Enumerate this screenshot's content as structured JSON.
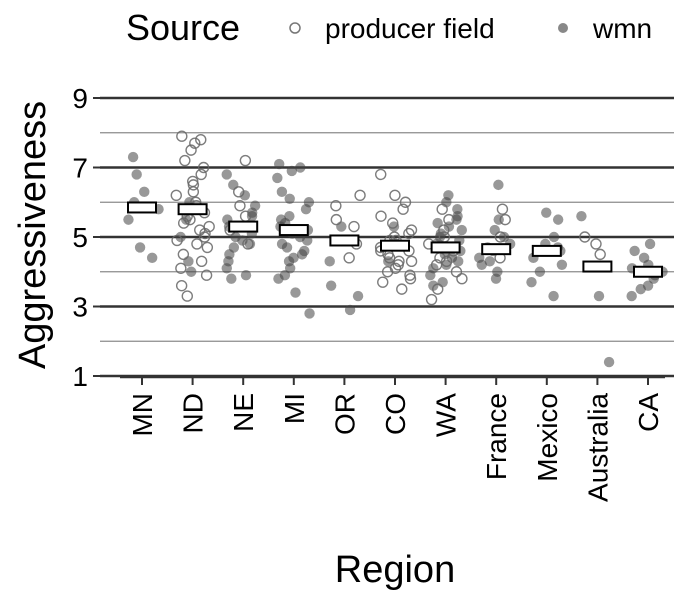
{
  "chart_data": {
    "type": "scatter",
    "subtype": "jittered strip plot with mean markers",
    "xlabel": "Region",
    "ylabel": "Aggressiveness",
    "ylim": [
      1,
      9.5
    ],
    "y_ticks": [
      1,
      3,
      5,
      7,
      9
    ],
    "y_minor_ticks": [
      2,
      4,
      6,
      8
    ],
    "grid": true,
    "categories": [
      "MN",
      "ND",
      "NE",
      "MI",
      "OR",
      "CO",
      "WA",
      "France",
      "Mexico",
      "Australia",
      "CA"
    ],
    "legend": {
      "title": "Source",
      "position": "top",
      "entries": [
        {
          "label": "producer field",
          "marker": "open-circle",
          "color": "#555555"
        },
        {
          "label": "wmn",
          "marker": "filled-circle",
          "color": "#555555"
        }
      ]
    },
    "means": [
      5.85,
      5.8,
      5.3,
      5.2,
      4.9,
      4.75,
      4.7,
      4.65,
      4.6,
      4.15,
      4.0
    ],
    "series": [
      {
        "name": "producer field",
        "points": [
          {
            "x": "ND",
            "y": 7.9
          },
          {
            "x": "ND",
            "y": 7.8
          },
          {
            "x": "ND",
            "y": 7.7
          },
          {
            "x": "ND",
            "y": 7.5
          },
          {
            "x": "ND",
            "y": 7.2
          },
          {
            "x": "ND",
            "y": 7.0
          },
          {
            "x": "ND",
            "y": 6.8
          },
          {
            "x": "ND",
            "y": 6.6
          },
          {
            "x": "ND",
            "y": 6.5
          },
          {
            "x": "ND",
            "y": 6.3
          },
          {
            "x": "ND",
            "y": 6.2
          },
          {
            "x": "ND",
            "y": 6.0
          },
          {
            "x": "ND",
            "y": 5.9
          },
          {
            "x": "ND",
            "y": 5.8
          },
          {
            "x": "ND",
            "y": 5.7
          },
          {
            "x": "ND",
            "y": 5.6
          },
          {
            "x": "ND",
            "y": 5.5
          },
          {
            "x": "ND",
            "y": 5.4
          },
          {
            "x": "ND",
            "y": 5.3
          },
          {
            "x": "ND",
            "y": 5.2
          },
          {
            "x": "ND",
            "y": 5.1
          },
          {
            "x": "ND",
            "y": 5.0
          },
          {
            "x": "ND",
            "y": 4.9
          },
          {
            "x": "ND",
            "y": 4.8
          },
          {
            "x": "ND",
            "y": 4.7
          },
          {
            "x": "ND",
            "y": 4.5
          },
          {
            "x": "ND",
            "y": 4.3
          },
          {
            "x": "ND",
            "y": 4.1
          },
          {
            "x": "ND",
            "y": 3.9
          },
          {
            "x": "ND",
            "y": 3.6
          },
          {
            "x": "ND",
            "y": 3.3
          },
          {
            "x": "NE",
            "y": 7.2
          },
          {
            "x": "NE",
            "y": 6.3
          },
          {
            "x": "NE",
            "y": 5.9
          },
          {
            "x": "NE",
            "y": 5.6
          },
          {
            "x": "NE",
            "y": 5.2
          },
          {
            "x": "NE",
            "y": 4.8
          },
          {
            "x": "OR",
            "y": 6.2
          },
          {
            "x": "OR",
            "y": 5.9
          },
          {
            "x": "OR",
            "y": 5.5
          },
          {
            "x": "OR",
            "y": 5.3
          },
          {
            "x": "OR",
            "y": 4.8
          },
          {
            "x": "OR",
            "y": 4.4
          },
          {
            "x": "CO",
            "y": 6.8
          },
          {
            "x": "CO",
            "y": 6.2
          },
          {
            "x": "CO",
            "y": 6.0
          },
          {
            "x": "CO",
            "y": 5.8
          },
          {
            "x": "CO",
            "y": 5.6
          },
          {
            "x": "CO",
            "y": 5.4
          },
          {
            "x": "CO",
            "y": 5.2
          },
          {
            "x": "CO",
            "y": 5.1
          },
          {
            "x": "CO",
            "y": 5.0
          },
          {
            "x": "CO",
            "y": 4.9
          },
          {
            "x": "CO",
            "y": 4.8
          },
          {
            "x": "CO",
            "y": 4.7
          },
          {
            "x": "CO",
            "y": 4.6
          },
          {
            "x": "CO",
            "y": 4.5
          },
          {
            "x": "CO",
            "y": 4.4
          },
          {
            "x": "CO",
            "y": 4.3
          },
          {
            "x": "CO",
            "y": 4.2
          },
          {
            "x": "CO",
            "y": 4.1
          },
          {
            "x": "CO",
            "y": 4.0
          },
          {
            "x": "CO",
            "y": 3.9
          },
          {
            "x": "CO",
            "y": 3.8
          },
          {
            "x": "CO",
            "y": 3.7
          },
          {
            "x": "CO",
            "y": 3.5
          },
          {
            "x": "CO",
            "y": 4.6
          },
          {
            "x": "CO",
            "y": 4.3
          },
          {
            "x": "CO",
            "y": 4.9
          },
          {
            "x": "WA",
            "y": 5.8
          },
          {
            "x": "WA",
            "y": 5.5
          },
          {
            "x": "WA",
            "y": 5.2
          },
          {
            "x": "WA",
            "y": 5.0
          },
          {
            "x": "WA",
            "y": 4.8
          },
          {
            "x": "WA",
            "y": 4.6
          },
          {
            "x": "WA",
            "y": 4.4
          },
          {
            "x": "WA",
            "y": 4.2
          },
          {
            "x": "WA",
            "y": 4.0
          },
          {
            "x": "WA",
            "y": 3.8
          },
          {
            "x": "WA",
            "y": 3.5
          },
          {
            "x": "WA",
            "y": 3.2
          },
          {
            "x": "WA",
            "y": 4.3
          },
          {
            "x": "WA",
            "y": 4.7
          },
          {
            "x": "France",
            "y": 5.8
          },
          {
            "x": "France",
            "y": 5.5
          },
          {
            "x": "France",
            "y": 5.0
          },
          {
            "x": "France",
            "y": 4.4
          },
          {
            "x": "Australia",
            "y": 5.0
          },
          {
            "x": "Australia",
            "y": 4.8
          },
          {
            "x": "Australia",
            "y": 4.5
          }
        ]
      },
      {
        "name": "wmn",
        "points": [
          {
            "x": "MN",
            "y": 7.3
          },
          {
            "x": "MN",
            "y": 6.8
          },
          {
            "x": "MN",
            "y": 6.3
          },
          {
            "x": "MN",
            "y": 6.0
          },
          {
            "x": "MN",
            "y": 5.8
          },
          {
            "x": "MN",
            "y": 5.5
          },
          {
            "x": "MN",
            "y": 4.7
          },
          {
            "x": "MN",
            "y": 4.4
          },
          {
            "x": "ND",
            "y": 6.0
          },
          {
            "x": "ND",
            "y": 5.5
          },
          {
            "x": "ND",
            "y": 5.0
          },
          {
            "x": "ND",
            "y": 4.3
          },
          {
            "x": "ND",
            "y": 4.0
          },
          {
            "x": "NE",
            "y": 6.8
          },
          {
            "x": "NE",
            "y": 6.5
          },
          {
            "x": "NE",
            "y": 6.2
          },
          {
            "x": "NE",
            "y": 5.9
          },
          {
            "x": "NE",
            "y": 5.7
          },
          {
            "x": "NE",
            "y": 5.5
          },
          {
            "x": "NE",
            "y": 5.3
          },
          {
            "x": "NE",
            "y": 5.1
          },
          {
            "x": "NE",
            "y": 4.9
          },
          {
            "x": "NE",
            "y": 4.7
          },
          {
            "x": "NE",
            "y": 4.5
          },
          {
            "x": "NE",
            "y": 4.3
          },
          {
            "x": "NE",
            "y": 4.1
          },
          {
            "x": "NE",
            "y": 3.9
          },
          {
            "x": "NE",
            "y": 3.8
          },
          {
            "x": "NE",
            "y": 5.6
          },
          {
            "x": "NE",
            "y": 4.8
          },
          {
            "x": "NE",
            "y": 5.0
          },
          {
            "x": "MI",
            "y": 7.1
          },
          {
            "x": "MI",
            "y": 7.0
          },
          {
            "x": "MI",
            "y": 6.9
          },
          {
            "x": "MI",
            "y": 6.7
          },
          {
            "x": "MI",
            "y": 6.3
          },
          {
            "x": "MI",
            "y": 6.1
          },
          {
            "x": "MI",
            "y": 5.8
          },
          {
            "x": "MI",
            "y": 5.6
          },
          {
            "x": "MI",
            "y": 5.4
          },
          {
            "x": "MI",
            "y": 5.3
          },
          {
            "x": "MI",
            "y": 5.2
          },
          {
            "x": "MI",
            "y": 5.1
          },
          {
            "x": "MI",
            "y": 5.0
          },
          {
            "x": "MI",
            "y": 4.9
          },
          {
            "x": "MI",
            "y": 4.8
          },
          {
            "x": "MI",
            "y": 4.7
          },
          {
            "x": "MI",
            "y": 4.6
          },
          {
            "x": "MI",
            "y": 4.5
          },
          {
            "x": "MI",
            "y": 4.3
          },
          {
            "x": "MI",
            "y": 4.1
          },
          {
            "x": "MI",
            "y": 3.9
          },
          {
            "x": "MI",
            "y": 3.8
          },
          {
            "x": "MI",
            "y": 3.4
          },
          {
            "x": "MI",
            "y": 2.8
          },
          {
            "x": "MI",
            "y": 5.5
          },
          {
            "x": "MI",
            "y": 4.4
          },
          {
            "x": "MI",
            "y": 6.0
          },
          {
            "x": "OR",
            "y": 5.3
          },
          {
            "x": "OR",
            "y": 4.3
          },
          {
            "x": "OR",
            "y": 3.6
          },
          {
            "x": "OR",
            "y": 3.3
          },
          {
            "x": "OR",
            "y": 2.9
          },
          {
            "x": "CO",
            "y": 5.3
          },
          {
            "x": "CO",
            "y": 4.3
          },
          {
            "x": "WA",
            "y": 6.2
          },
          {
            "x": "WA",
            "y": 6.0
          },
          {
            "x": "WA",
            "y": 5.8
          },
          {
            "x": "WA",
            "y": 5.6
          },
          {
            "x": "WA",
            "y": 5.4
          },
          {
            "x": "WA",
            "y": 5.3
          },
          {
            "x": "WA",
            "y": 5.2
          },
          {
            "x": "WA",
            "y": 5.1
          },
          {
            "x": "WA",
            "y": 5.0
          },
          {
            "x": "WA",
            "y": 4.9
          },
          {
            "x": "WA",
            "y": 4.8
          },
          {
            "x": "WA",
            "y": 4.7
          },
          {
            "x": "WA",
            "y": 4.6
          },
          {
            "x": "WA",
            "y": 4.5
          },
          {
            "x": "WA",
            "y": 4.4
          },
          {
            "x": "WA",
            "y": 4.3
          },
          {
            "x": "WA",
            "y": 4.1
          },
          {
            "x": "WA",
            "y": 3.9
          },
          {
            "x": "WA",
            "y": 3.7
          },
          {
            "x": "WA",
            "y": 3.6
          },
          {
            "x": "WA",
            "y": 5.5
          },
          {
            "x": "WA",
            "y": 4.2
          },
          {
            "x": "France",
            "y": 6.5
          },
          {
            "x": "France",
            "y": 5.5
          },
          {
            "x": "France",
            "y": 5.2
          },
          {
            "x": "France",
            "y": 5.0
          },
          {
            "x": "France",
            "y": 4.8
          },
          {
            "x": "France",
            "y": 4.6
          },
          {
            "x": "France",
            "y": 4.4
          },
          {
            "x": "France",
            "y": 4.2
          },
          {
            "x": "France",
            "y": 4.0
          },
          {
            "x": "France",
            "y": 3.8
          },
          {
            "x": "France",
            "y": 4.7
          },
          {
            "x": "France",
            "y": 4.3
          },
          {
            "x": "Mexico",
            "y": 5.7
          },
          {
            "x": "Mexico",
            "y": 5.5
          },
          {
            "x": "Mexico",
            "y": 5.0
          },
          {
            "x": "Mexico",
            "y": 4.8
          },
          {
            "x": "Mexico",
            "y": 4.6
          },
          {
            "x": "Mexico",
            "y": 4.4
          },
          {
            "x": "Mexico",
            "y": 4.2
          },
          {
            "x": "Mexico",
            "y": 4.0
          },
          {
            "x": "Mexico",
            "y": 3.7
          },
          {
            "x": "Mexico",
            "y": 3.3
          },
          {
            "x": "Mexico",
            "y": 4.7
          },
          {
            "x": "Australia",
            "y": 5.6
          },
          {
            "x": "Australia",
            "y": 3.3
          },
          {
            "x": "Australia",
            "y": 1.4
          },
          {
            "x": "CA",
            "y": 4.8
          },
          {
            "x": "CA",
            "y": 4.6
          },
          {
            "x": "CA",
            "y": 4.4
          },
          {
            "x": "CA",
            "y": 4.2
          },
          {
            "x": "CA",
            "y": 4.0
          },
          {
            "x": "CA",
            "y": 3.8
          },
          {
            "x": "CA",
            "y": 3.6
          },
          {
            "x": "CA",
            "y": 3.5
          },
          {
            "x": "CA",
            "y": 3.3
          },
          {
            "x": "CA",
            "y": 4.1
          },
          {
            "x": "CA",
            "y": 3.9
          }
        ]
      }
    ]
  }
}
